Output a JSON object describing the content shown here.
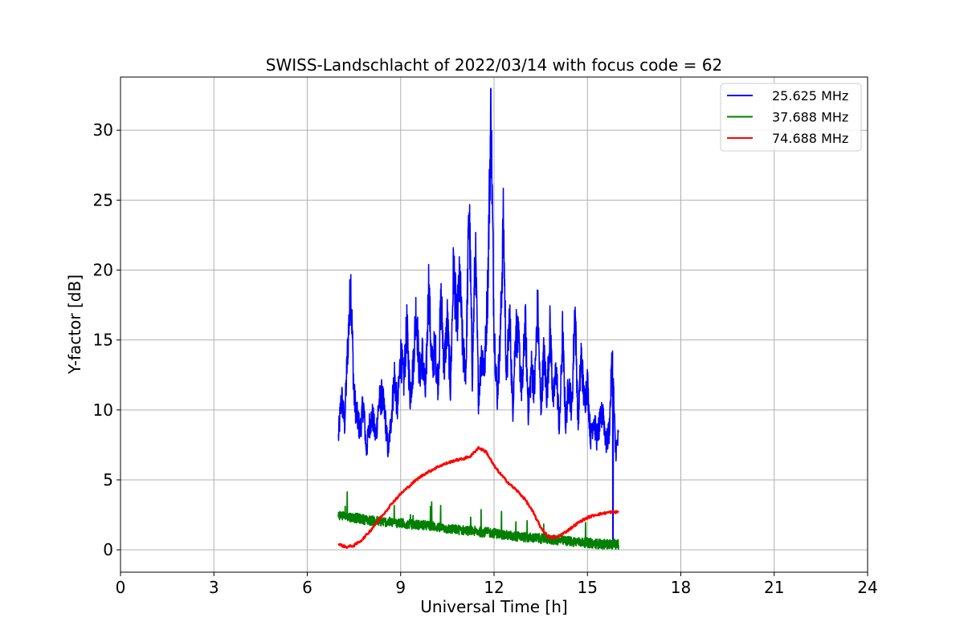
{
  "chart_data": {
    "type": "line",
    "title": "SWISS-Landschlacht of 2022/03/14 with focus code = 62",
    "xlabel": "Universal Time [h]",
    "ylabel": "Y-factor [dB]",
    "xlim": [
      0,
      24
    ],
    "ylim": [
      -1.6,
      33.8
    ],
    "xticks": [
      "0",
      "3",
      "6",
      "9",
      "12",
      "15",
      "18",
      "21",
      "24"
    ],
    "yticks": [
      "0",
      "5",
      "10",
      "15",
      "20",
      "25",
      "30"
    ],
    "grid": true,
    "legend_position": "top-right",
    "series": [
      {
        "name": "25.625 MHz",
        "color": "#0000ff",
        "x": [
          7.0,
          7.1,
          7.2,
          7.3,
          7.4,
          7.5,
          7.6,
          7.7,
          7.8,
          7.9,
          8.0,
          8.1,
          8.2,
          8.3,
          8.4,
          8.5,
          8.6,
          8.7,
          8.8,
          8.9,
          9.0,
          9.1,
          9.2,
          9.3,
          9.4,
          9.5,
          9.6,
          9.7,
          9.8,
          9.9,
          10.0,
          10.1,
          10.2,
          10.3,
          10.4,
          10.5,
          10.6,
          10.7,
          10.8,
          10.9,
          11.0,
          11.1,
          11.2,
          11.3,
          11.4,
          11.5,
          11.6,
          11.7,
          11.8,
          11.9,
          12.0,
          12.1,
          12.2,
          12.3,
          12.4,
          12.5,
          12.6,
          12.7,
          12.8,
          12.9,
          13.0,
          13.1,
          13.2,
          13.3,
          13.4,
          13.5,
          13.6,
          13.7,
          13.8,
          13.9,
          14.0,
          14.1,
          14.2,
          14.3,
          14.4,
          14.5,
          14.6,
          14.7,
          14.8,
          14.9,
          15.0,
          15.1,
          15.2,
          15.3,
          15.4,
          15.5,
          15.6,
          15.7,
          15.8,
          15.9,
          16.0
        ],
        "y": [
          8.0,
          11.0,
          9.0,
          14.5,
          19.0,
          11.0,
          9.5,
          8.5,
          10.5,
          7.0,
          9.0,
          9.5,
          8.0,
          10.5,
          11.0,
          9.5,
          7.0,
          9.5,
          12.5,
          10.0,
          14.0,
          12.0,
          16.0,
          11.0,
          13.0,
          17.5,
          12.5,
          14.0,
          11.0,
          19.0,
          13.0,
          14.5,
          12.0,
          18.0,
          13.0,
          16.5,
          11.5,
          20.5,
          16.0,
          19.5,
          14.0,
          13.0,
          25.0,
          12.5,
          21.5,
          11.0,
          14.0,
          13.0,
          19.0,
          31.5,
          16.0,
          11.0,
          15.0,
          23.5,
          12.0,
          17.0,
          10.0,
          16.0,
          14.5,
          11.0,
          16.5,
          10.0,
          13.0,
          11.5,
          17.5,
          10.0,
          14.0,
          11.0,
          16.0,
          10.5,
          13.0,
          8.5,
          15.5,
          9.0,
          12.0,
          10.0,
          17.5,
          9.0,
          14.0,
          10.5,
          12.0,
          8.0,
          9.5,
          8.0,
          9.0,
          10.0,
          7.5,
          8.5,
          14.0,
          7.0,
          8.0
        ],
        "x_extra": [
          15.82,
          15.83
        ],
        "y_extra": [
          0.5,
          0.3
        ]
      },
      {
        "name": "37.688 MHz",
        "color": "#008000",
        "x": [
          7.0,
          7.5,
          8.0,
          8.5,
          9.0,
          9.5,
          10.0,
          10.5,
          11.0,
          11.5,
          12.0,
          12.5,
          13.0,
          13.5,
          14.0,
          14.5,
          15.0,
          15.5,
          16.0
        ],
        "y": [
          2.5,
          2.3,
          2.1,
          2.0,
          1.9,
          1.8,
          1.7,
          1.5,
          1.4,
          1.3,
          1.2,
          1.0,
          0.9,
          0.8,
          0.7,
          0.6,
          0.5,
          0.4,
          0.4
        ]
      },
      {
        "name": "74.688 MHz",
        "color": "#ff0000",
        "x": [
          7.0,
          7.25,
          7.5,
          7.75,
          8.0,
          8.25,
          8.5,
          8.75,
          9.0,
          9.25,
          9.5,
          9.75,
          10.0,
          10.25,
          10.5,
          10.75,
          11.0,
          11.25,
          11.5,
          11.75,
          12.0,
          12.25,
          12.5,
          12.75,
          13.0,
          13.25,
          13.5,
          13.75,
          14.0,
          14.25,
          14.5,
          14.75,
          15.0,
          15.25,
          15.5,
          15.75,
          16.0
        ],
        "y": [
          0.4,
          0.2,
          0.3,
          0.7,
          1.3,
          2.0,
          2.7,
          3.4,
          4.0,
          4.5,
          5.0,
          5.4,
          5.7,
          6.0,
          6.2,
          6.4,
          6.5,
          6.7,
          7.3,
          7.0,
          6.0,
          5.3,
          4.7,
          4.2,
          3.6,
          2.7,
          1.6,
          0.9,
          0.9,
          1.2,
          1.6,
          2.0,
          2.3,
          2.5,
          2.6,
          2.7,
          2.7
        ]
      }
    ]
  }
}
